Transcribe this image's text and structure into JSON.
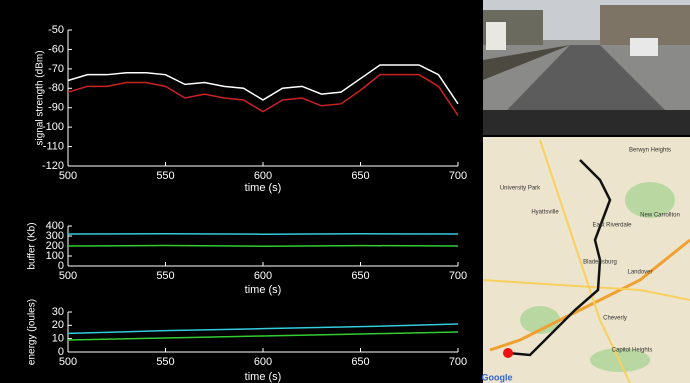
{
  "chart_data": [
    {
      "type": "line",
      "ylabel": "signal strength (dBm)",
      "xlabel": "time (s)",
      "x": [
        500,
        510,
        520,
        530,
        540,
        550,
        560,
        570,
        580,
        590,
        600,
        610,
        620,
        630,
        640,
        650,
        660,
        670,
        680,
        690,
        700
      ],
      "series": [
        {
          "color": "#ffffff",
          "values": [
            -76,
            -73,
            -73,
            -72,
            -72,
            -73,
            -78,
            -77,
            -79,
            -80,
            -86,
            -80,
            -79,
            -83,
            -82,
            -75,
            -68,
            -68,
            -68,
            -73,
            -88
          ]
        },
        {
          "color": "#cc2222",
          "values": [
            -82,
            -79,
            -79,
            -77,
            -77,
            -79,
            -85,
            -83,
            -85,
            -86,
            -92,
            -86,
            -85,
            -89,
            -88,
            -81,
            -73,
            -73,
            -73,
            -79,
            -94
          ]
        }
      ],
      "xlim": [
        500,
        700
      ],
      "xticks": [
        500,
        550,
        600,
        650,
        700
      ],
      "ylim": [
        -120,
        -50
      ],
      "yticks": [
        -50,
        -60,
        -70,
        -80,
        -90,
        -100,
        -110,
        -120
      ]
    },
    {
      "type": "line",
      "ylabel": "buffer (Kb)",
      "xlabel": "time (s)",
      "x": [
        500,
        550,
        600,
        650,
        700
      ],
      "series": [
        {
          "color": "#33ccdd",
          "values": [
            320,
            322,
            318,
            322,
            320
          ]
        },
        {
          "color": "#33cc33",
          "values": [
            200,
            205,
            198,
            204,
            200
          ]
        }
      ],
      "xlim": [
        500,
        700
      ],
      "xticks": [
        500,
        550,
        600,
        650,
        700
      ],
      "ylim": [
        0,
        400
      ],
      "yticks": [
        0,
        100,
        200,
        300,
        400
      ]
    },
    {
      "type": "line",
      "ylabel": "energy (joules)",
      "xlabel": "time (s)",
      "x": [
        500,
        550,
        600,
        650,
        700
      ],
      "series": [
        {
          "color": "#33ccdd",
          "values": [
            14,
            16,
            17.5,
            19,
            21
          ]
        },
        {
          "color": "#33cc33",
          "values": [
            9,
            10.5,
            12,
            13.5,
            15
          ]
        }
      ],
      "xlim": [
        500,
        700
      ],
      "xticks": [
        500,
        550,
        600,
        650,
        700
      ],
      "ylim": [
        0,
        30
      ],
      "yticks": [
        0,
        10,
        20,
        30
      ]
    }
  ],
  "map": {
    "labels": [
      "Berwyn Heights",
      "University Park",
      "Hyattsville",
      "East Riverdale",
      "New Carrollton",
      "Bladensburg",
      "Landover",
      "Cheverly",
      "Capitol Heights",
      "Google"
    ]
  }
}
